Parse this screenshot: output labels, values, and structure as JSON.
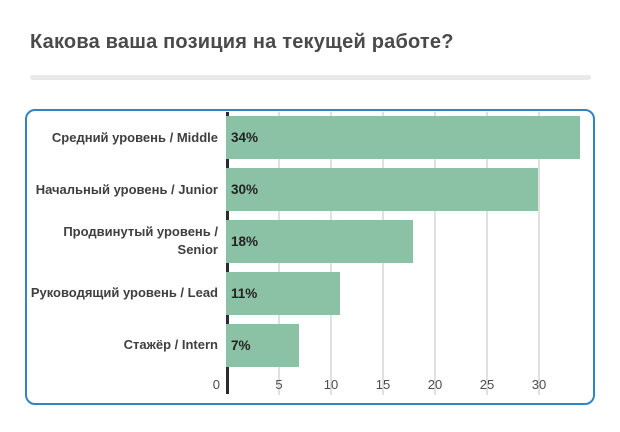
{
  "page": {
    "title": "Какова ваша позиция на текущей работе?"
  },
  "colors": {
    "page_bg": "#ffffff",
    "panel_border": "#2f86c3",
    "bar": "#8bc2a5",
    "axis_line": "#2c2c2c",
    "gridline": "#e0e0e0",
    "title_text": "#4a4a4a",
    "category_text": "#3f3f3f",
    "value_text": "#222222",
    "tick_text": "#4c4c4c",
    "divider": "#e9e9e9"
  },
  "chart_data": {
    "type": "bar",
    "orientation": "horizontal",
    "title": "Какова ваша позиция на текущей работе?",
    "categories": [
      "Средний уровень / Middle",
      "Начальный уровень / Junior",
      "Продвинутый уровень / Senior",
      "Руководящий уровень / Lead",
      "Стажёр / Intern"
    ],
    "values": [
      34,
      30,
      18,
      11,
      7
    ],
    "value_labels": [
      "34%",
      "30%",
      "18%",
      "11%",
      "7%"
    ],
    "x_ticks": [
      0,
      5,
      10,
      15,
      20,
      25,
      30
    ],
    "xlim": [
      0,
      35.3
    ],
    "xlabel": "",
    "ylabel": "",
    "unit": "percent of respondents",
    "grid": true,
    "legend": "none"
  }
}
